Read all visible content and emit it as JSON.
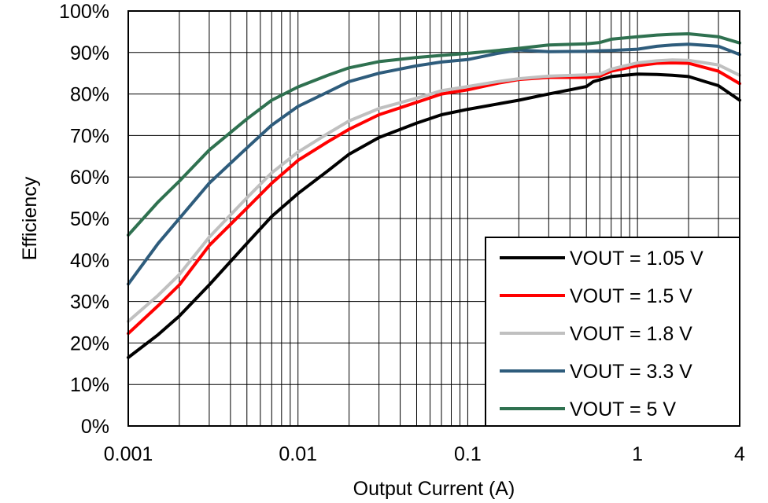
{
  "chart_data": {
    "type": "line",
    "title": "",
    "xlabel": "Output Current (A)",
    "ylabel": "Efficiency",
    "x_scale": "log",
    "xlim": [
      0.001,
      4
    ],
    "ylim": [
      0,
      100
    ],
    "x_ticks": [
      0.001,
      0.01,
      0.1,
      1,
      4
    ],
    "x_tick_labels": [
      "0.001",
      "0.01",
      "0.1",
      "1",
      "4"
    ],
    "y_ticks": [
      0,
      10,
      20,
      30,
      40,
      50,
      60,
      70,
      80,
      90,
      100
    ],
    "y_tick_labels": [
      "0%",
      "10%",
      "20%",
      "30%",
      "40%",
      "50%",
      "60%",
      "70%",
      "80%",
      "90%",
      "100%"
    ],
    "grid": true,
    "legend_position": "bottom-right",
    "series": [
      {
        "name": "VOUT = 1.05 V",
        "color": "#000000",
        "x": [
          0.001,
          0.0015,
          0.002,
          0.003,
          0.005,
          0.007,
          0.01,
          0.015,
          0.02,
          0.03,
          0.05,
          0.07,
          0.1,
          0.15,
          0.2,
          0.3,
          0.4,
          0.5,
          0.55,
          0.7,
          1,
          1.3,
          1.6,
          2,
          3,
          4
        ],
        "y": [
          16.5,
          22,
          26.5,
          34,
          44,
          50.5,
          56,
          61.5,
          65.5,
          69.5,
          73,
          75,
          76.3,
          77.6,
          78.5,
          80,
          81,
          81.8,
          83,
          84.2,
          84.8,
          84.7,
          84.5,
          84.2,
          82,
          78.5
        ]
      },
      {
        "name": "VOUT = 1.5 V",
        "color": "#ff0000",
        "x": [
          0.001,
          0.0015,
          0.002,
          0.003,
          0.005,
          0.007,
          0.01,
          0.015,
          0.02,
          0.03,
          0.05,
          0.07,
          0.1,
          0.15,
          0.2,
          0.3,
          0.5,
          0.6,
          0.7,
          1,
          1.3,
          1.6,
          2,
          3,
          4
        ],
        "y": [
          22.3,
          29,
          34,
          43.5,
          52.5,
          58.5,
          64,
          68.5,
          71.5,
          75,
          78,
          80,
          81,
          82.6,
          83.5,
          84,
          84,
          84.3,
          85.5,
          86.8,
          87.4,
          87.5,
          87.4,
          85.5,
          82.5
        ]
      },
      {
        "name": "VOUT = 1.8 V",
        "color": "#c0c0c0",
        "x": [
          0.001,
          0.0015,
          0.002,
          0.003,
          0.005,
          0.007,
          0.01,
          0.015,
          0.02,
          0.03,
          0.05,
          0.07,
          0.1,
          0.15,
          0.2,
          0.3,
          0.5,
          0.6,
          0.7,
          1,
          1.3,
          1.6,
          2,
          3,
          4
        ],
        "y": [
          25.2,
          31.5,
          36.5,
          45.5,
          55,
          61,
          66,
          70.5,
          73.5,
          76.5,
          79,
          80.8,
          81.8,
          83,
          83.7,
          84.3,
          84.6,
          84.8,
          86,
          87.5,
          88,
          88.2,
          88.1,
          87,
          84.5
        ]
      },
      {
        "name": "VOUT = 3.3 V",
        "color": "#2e5c7c",
        "x": [
          0.001,
          0.0015,
          0.002,
          0.003,
          0.005,
          0.007,
          0.01,
          0.015,
          0.02,
          0.03,
          0.05,
          0.07,
          0.1,
          0.15,
          0.2,
          0.3,
          0.5,
          0.7,
          1,
          1.3,
          1.6,
          2,
          3,
          4
        ],
        "y": [
          34.2,
          44,
          50,
          58.5,
          67,
          72.5,
          77,
          80.5,
          83,
          85,
          86.8,
          87.7,
          88.3,
          89.8,
          90.6,
          90.2,
          90.3,
          90.5,
          90.8,
          91.5,
          91.8,
          92,
          91.5,
          89.5
        ]
      },
      {
        "name": "VOUT = 5 V",
        "color": "#2f7150",
        "x": [
          0.001,
          0.0015,
          0.002,
          0.003,
          0.005,
          0.007,
          0.01,
          0.015,
          0.02,
          0.03,
          0.05,
          0.07,
          0.1,
          0.15,
          0.2,
          0.3,
          0.5,
          0.6,
          0.7,
          1,
          1.3,
          1.6,
          2,
          3,
          4
        ],
        "y": [
          46,
          54,
          59,
          66.5,
          74,
          78.5,
          81.7,
          84.5,
          86.3,
          87.8,
          88.8,
          89.3,
          89.8,
          90.5,
          91,
          91.8,
          92.1,
          92.4,
          93.2,
          93.8,
          94.2,
          94.4,
          94.5,
          93.8,
          92.3
        ]
      }
    ]
  }
}
